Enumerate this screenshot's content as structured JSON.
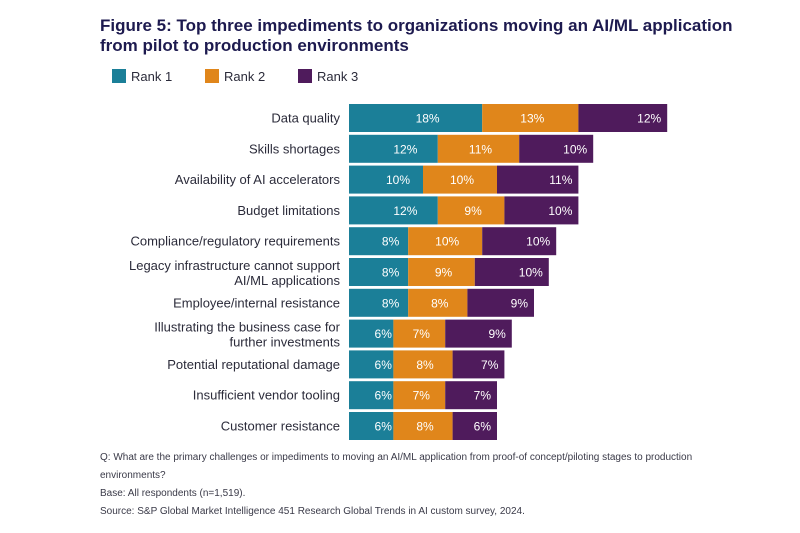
{
  "title": "Figure 5: Top three impediments to organizations moving an AI/ML application from pilot to production environments",
  "chart_data": {
    "type": "bar",
    "orientation": "horizontal",
    "stacked": true,
    "categories": [
      "Data quality",
      "Skills shortages",
      "Availability of AI accelerators",
      "Budget limitations",
      "Compliance/regulatory requirements",
      "Legacy infrastructure cannot support AI/ML applications",
      "Employee/internal resistance",
      "Illustrating the business case for further investments",
      "Potential reputational damage",
      "Insufficient vendor tooling",
      "Customer resistance"
    ],
    "category_lines": [
      [
        "Data quality"
      ],
      [
        "Skills shortages"
      ],
      [
        "Availability of AI accelerators"
      ],
      [
        "Budget limitations"
      ],
      [
        "Compliance/regulatory requirements"
      ],
      [
        "Legacy infrastructure cannot support",
        "AI/ML applications"
      ],
      [
        "Employee/internal resistance"
      ],
      [
        "Illustrating the business case for",
        "further investments"
      ],
      [
        "Potential reputational damage"
      ],
      [
        "Insufficient vendor tooling"
      ],
      [
        "Customer resistance"
      ]
    ],
    "series": [
      {
        "name": "Rank 1",
        "color": "#1b7f98",
        "values": [
          18,
          12,
          10,
          12,
          8,
          8,
          8,
          6,
          6,
          6,
          6
        ]
      },
      {
        "name": "Rank 2",
        "color": "#e0861b",
        "values": [
          13,
          11,
          10,
          9,
          10,
          9,
          8,
          7,
          8,
          7,
          8
        ]
      },
      {
        "name": "Rank 3",
        "color": "#4f1b5c",
        "values": [
          12,
          10,
          11,
          10,
          10,
          10,
          9,
          9,
          7,
          7,
          6
        ]
      }
    ],
    "value_suffix": "%",
    "legend_position": "top-left",
    "grid": false
  },
  "notes": [
    "Q: What are the primary challenges or impediments to moving an AI/ML application from proof-of concept/piloting stages to production environments?",
    "Base: All respondents (n=1,519).",
    "Source: S&P Global Market Intelligence 451 Research Global Trends in AI custom survey, 2024."
  ]
}
